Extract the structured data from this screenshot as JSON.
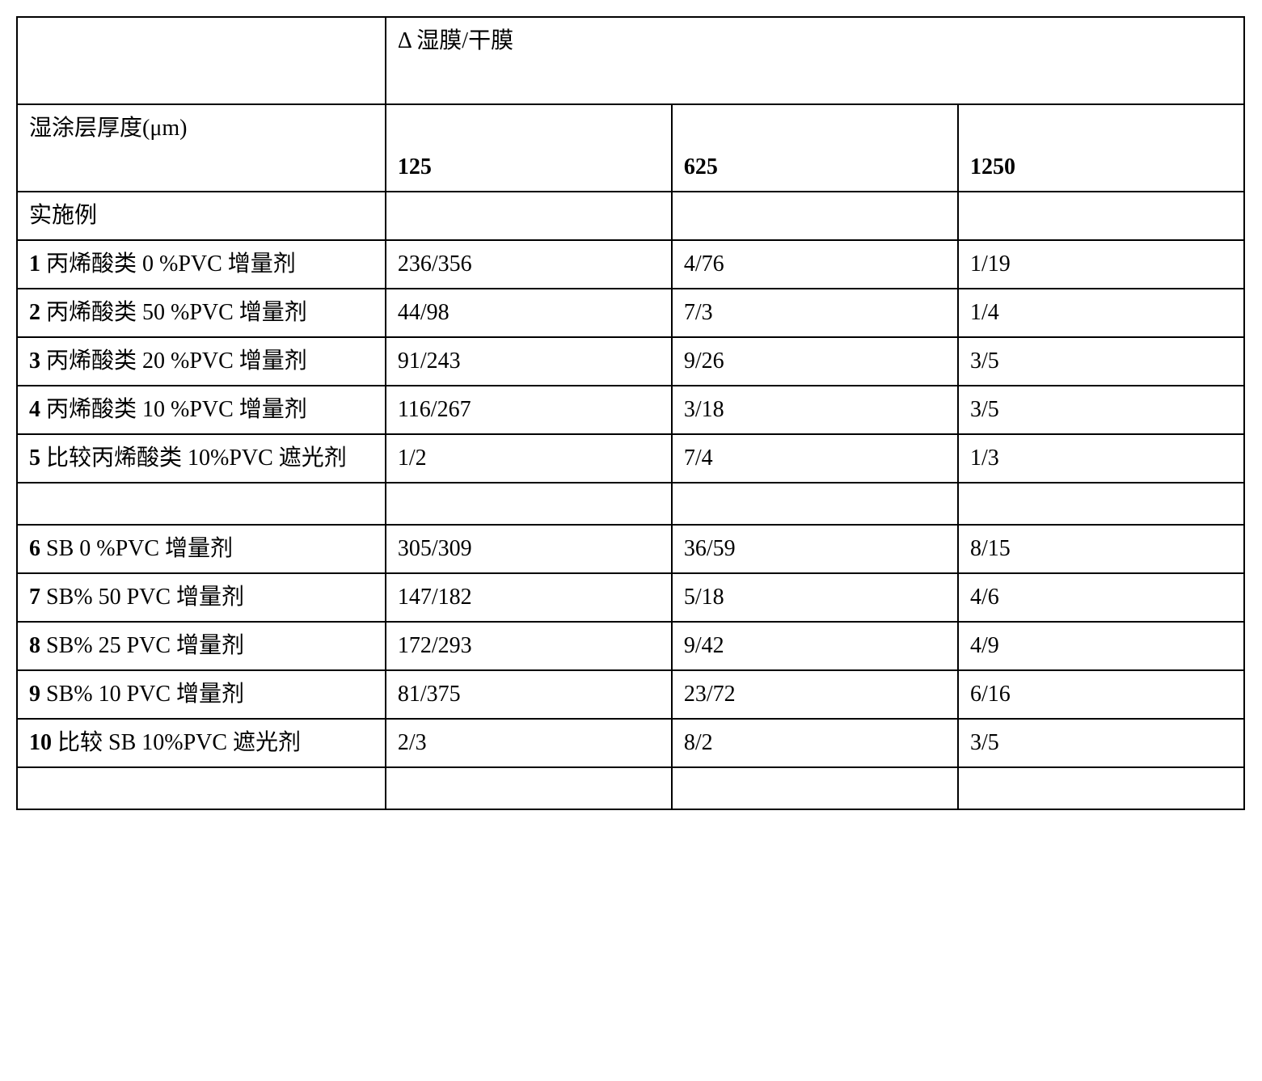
{
  "table": {
    "header_delta": "Δ 湿膜/干膜",
    "row_thickness_label": "湿涂层厚度(μm)",
    "cols": {
      "c125": "125",
      "c625": "625",
      "c1250": "1250"
    },
    "example_label": "实施例",
    "rows": [
      {
        "num": "1",
        "label": "丙烯酸类 0 %PVC 增量剂",
        "v125": "236/356",
        "v625": "4/76",
        "v1250": "1/19"
      },
      {
        "num": "2",
        "label": "丙烯酸类 50 %PVC 增量剂",
        "v125": "44/98",
        "v625": "7/3",
        "v1250": "1/4"
      },
      {
        "num": "3",
        "label": "丙烯酸类 20 %PVC 增量剂",
        "v125": "91/243",
        "v625": "9/26",
        "v1250": "3/5"
      },
      {
        "num": "4",
        "label": "丙烯酸类 10 %PVC 增量剂",
        "v125": "116/267",
        "v625": "3/18",
        "v1250": "3/5"
      },
      {
        "num": "5",
        "label": "比较丙烯酸类 10%PVC 遮光剂",
        "v125": "1/2",
        "v625": "7/4",
        "v1250": "1/3"
      },
      {
        "num": "6",
        "label": "SB 0 %PVC 增量剂",
        "v125": "305/309",
        "v625": "36/59",
        "v1250": "8/15"
      },
      {
        "num": "7",
        "label": "SB% 50 PVC 增量剂",
        "v125": "147/182",
        "v625": "5/18",
        "v1250": "4/6"
      },
      {
        "num": "8",
        "label": "SB% 25 PVC 增量剂",
        "v125": "172/293",
        "v625": "9/42",
        "v1250": "4/9"
      },
      {
        "num": "9",
        "label": "SB% 10 PVC 增量剂",
        "v125": "81/375",
        "v625": "23/72",
        "v1250": "6/16"
      },
      {
        "num": "10",
        "label": "比较 SB 10%PVC  遮光剂",
        "v125": "2/3",
        "v625": "8/2",
        "v1250": "3/5"
      }
    ]
  },
  "style": {
    "border_color": "#000000",
    "background_color": "#ffffff",
    "font_size_pt": 21,
    "col_widths_pct": [
      30,
      23.3,
      23.3,
      23.4
    ]
  }
}
